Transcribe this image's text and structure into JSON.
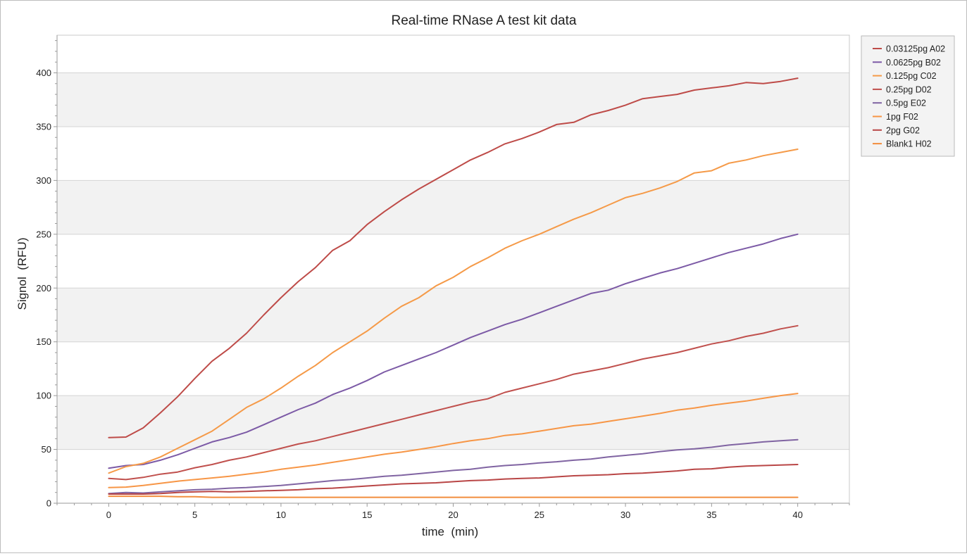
{
  "chart_data": {
    "type": "line",
    "title": "Real-time RNase A test kit data",
    "xlabel": "time  (min)",
    "ylabel": "Signol  (RFU)",
    "xlim": [
      -3,
      43
    ],
    "ylim": [
      0,
      435
    ],
    "xticks": [
      0,
      5,
      10,
      15,
      20,
      25,
      30,
      35,
      40
    ],
    "yticks": [
      0,
      50,
      100,
      150,
      200,
      250,
      300,
      350,
      400
    ],
    "grid": "horizontal",
    "legend_position": "right",
    "x": [
      0,
      1,
      2,
      3,
      4,
      5,
      6,
      7,
      8,
      9,
      10,
      11,
      12,
      13,
      14,
      15,
      16,
      17,
      18,
      19,
      20,
      21,
      22,
      23,
      24,
      25,
      26,
      27,
      28,
      29,
      30,
      31,
      32,
      33,
      34,
      35,
      36,
      37,
      38,
      39,
      40
    ],
    "series": [
      {
        "name": "0.03125pg A02",
        "color": "#be4b48",
        "values": [
          61,
          61.5,
          70,
          84,
          99,
          116,
          132,
          144,
          158,
          175,
          191,
          206,
          219,
          235,
          244,
          259,
          271,
          282,
          292,
          301,
          310,
          319,
          326,
          334,
          339,
          345,
          352,
          354,
          361,
          365,
          370,
          376,
          378,
          380,
          384,
          386,
          388,
          391,
          390,
          392,
          395
        ]
      },
      {
        "name": "0.0625pg B02",
        "color": "#7c5aa6",
        "values": [
          32.5,
          35,
          36,
          40,
          45,
          51,
          57,
          61,
          66,
          73,
          80,
          87,
          93,
          101,
          107,
          114,
          122,
          128,
          134,
          140,
          147,
          154,
          160,
          166,
          171,
          177,
          183,
          189,
          195,
          198,
          204,
          209,
          214,
          218,
          223,
          228,
          233,
          237,
          241,
          246,
          250
        ]
      },
      {
        "name": "0.125pg C02",
        "color": "#f59a48",
        "values": [
          28,
          34,
          37,
          43,
          51,
          59,
          67,
          78,
          89,
          97,
          107,
          118,
          128,
          140,
          150,
          160,
          172,
          183,
          191,
          202,
          210,
          220,
          228,
          237,
          244,
          250,
          257,
          264,
          270,
          277,
          284,
          288,
          293,
          299,
          307,
          309,
          316,
          319,
          323,
          326,
          329
        ]
      },
      {
        "name": "0.25pg D02",
        "color": "#c0504d",
        "values": [
          23,
          22,
          24,
          27,
          29,
          33,
          36,
          40,
          43,
          47,
          51,
          55,
          58,
          62,
          66,
          70,
          74,
          78,
          82,
          86,
          90,
          94,
          97,
          103,
          107,
          111,
          115,
          120,
          123,
          126,
          130,
          134,
          137,
          140,
          144,
          148,
          151,
          155,
          158,
          162,
          165
        ]
      },
      {
        "name": "0.5pg E02",
        "color": "#8064a2",
        "values": [
          9,
          10,
          9.5,
          10.5,
          11.5,
          12.5,
          13,
          14,
          14.5,
          15.5,
          16.5,
          18,
          19.5,
          21,
          22,
          23.5,
          25,
          26,
          27.5,
          29,
          30.5,
          31.5,
          33.5,
          35,
          36,
          37.5,
          38.5,
          40,
          41,
          43,
          44.5,
          46,
          48,
          49.5,
          50.5,
          52,
          54,
          55.5,
          57,
          58,
          59
        ]
      },
      {
        "name": "1pg F02",
        "color": "#f79646",
        "values": [
          14.5,
          15,
          16.5,
          18.5,
          20.5,
          22,
          23.5,
          25,
          27,
          29,
          31.5,
          33.5,
          35.5,
          38,
          40.5,
          43,
          45.5,
          47.5,
          50,
          52.5,
          55.5,
          58,
          60,
          63,
          64.5,
          67,
          69.5,
          72,
          73.5,
          76,
          78.5,
          81,
          83.5,
          86.5,
          88.5,
          91,
          93,
          95,
          97.5,
          100,
          102
        ]
      },
      {
        "name": "2pg G02",
        "color": "#b94646",
        "values": [
          8.5,
          8.5,
          8.5,
          9,
          10,
          10.5,
          11,
          10.5,
          11,
          11.5,
          12,
          12.5,
          13.5,
          14,
          15,
          16,
          17,
          18,
          18.5,
          19,
          20,
          21,
          21.5,
          22.5,
          23,
          23.5,
          24.5,
          25.5,
          26,
          26.5,
          27.5,
          28,
          29,
          30,
          31.5,
          32,
          33.5,
          34.5,
          35,
          35.5,
          36
        ]
      },
      {
        "name": "Blank1 H02",
        "color": "#f28e3e",
        "values": [
          6.5,
          6.5,
          6.5,
          6.5,
          6,
          6,
          5.5,
          5.5,
          5.5,
          5.5,
          5.5,
          5.5,
          5.5,
          5.5,
          5.5,
          5.5,
          5.5,
          5.5,
          5.5,
          5.5,
          5.5,
          5.5,
          5.5,
          5.5,
          5.5,
          5.5,
          5.5,
          5.5,
          5.5,
          5.5,
          5.5,
          5.5,
          5.5,
          5.5,
          5.5,
          5.5,
          5.5,
          5.5,
          5.5,
          5.5,
          5.5
        ]
      }
    ]
  },
  "colors": {
    "plot_background": "#ffffff",
    "band_fill": "#f2f2f2",
    "gridline": "#d4d4d4",
    "axis": "#9a9a9a",
    "legend_background": "#f3f3f3"
  }
}
